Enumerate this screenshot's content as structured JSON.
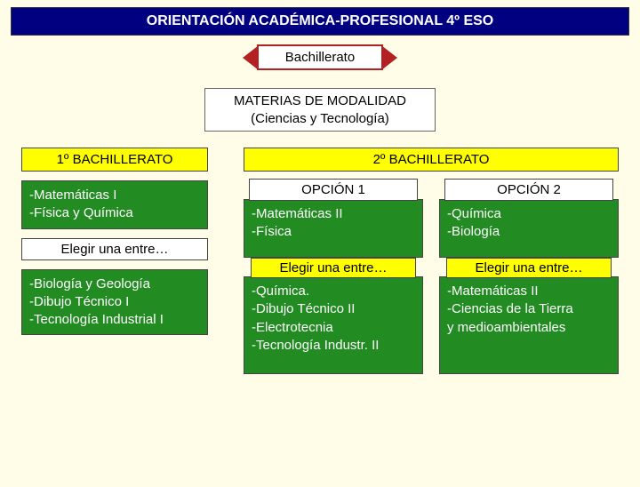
{
  "colors": {
    "page_bg": "#fffde7",
    "title_bg": "#000080",
    "title_fg": "#ffffff",
    "hex_border": "#b22222",
    "hex_bg": "#ffffff",
    "yellow": "#ffff00",
    "green": "#228b22",
    "green_fg": "#ffffff",
    "box_border": "#444444"
  },
  "title": "ORIENTACIÓN ACADÉMICA-PROFESIONAL 4º ESO",
  "hex_label": "Bachillerato",
  "modalidad": "MATERIAS DE MODALIDAD\n(Ciencias y Tecnología)",
  "left": {
    "header": "1º BACHILLERATO",
    "core": "-Matemáticas I\n-Física y Química",
    "choose": "Elegir una entre…",
    "options": "-Biología y Geología\n-Dibujo Técnico I\n-Tecnología Industrial I"
  },
  "right": {
    "header": "2º BACHILLERATO",
    "opt1": {
      "title": "OPCIÓN 1",
      "core": "-Matemáticas II\n-Física",
      "choose": "Elegir una entre…",
      "options": "-Química.\n-Dibujo Técnico II\n-Electrotecnia\n-Tecnología  Industr. II"
    },
    "opt2": {
      "title": "OPCIÓN 2",
      "core": "-Química\n-Biología",
      "choose": "Elegir una entre…",
      "options": "-Matemáticas II\n-Ciencias de la Tierra\n y medioambientales"
    }
  }
}
